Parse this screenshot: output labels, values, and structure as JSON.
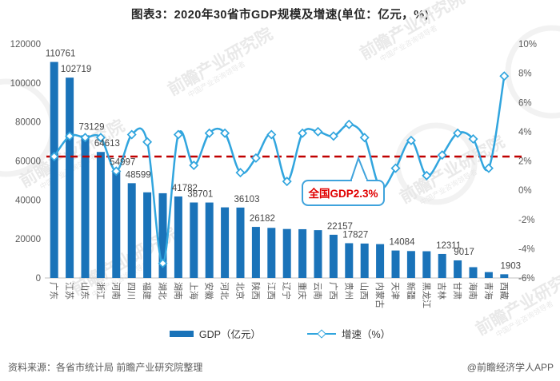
{
  "title": "图表3：2020年30省市GDP规模及增速(单位：亿元，%)",
  "legend": [
    {
      "label": "GDP（亿元）"
    },
    {
      "label": "增速（%）"
    }
  ],
  "footer": {
    "source": "资料来源：各省市统计局 前瞻产业研究院整理",
    "credit": "@前瞻经济学人APP"
  },
  "watermark": {
    "text": "前瞻产业研究院",
    "subtext": "中国产业咨询领导者"
  },
  "left_axis_ticks": [
    "120000",
    "100000",
    "80000",
    "60000",
    "40000",
    "20000",
    "0"
  ],
  "right_axis_ticks": [
    "10%",
    "8%",
    "6%",
    "4%",
    "2%",
    "0%",
    "-2%",
    "-4%",
    "-6%"
  ],
  "colors": {
    "bar": "#1A73B9",
    "line": "#31A5DE",
    "marker_fill": "#FFFFFF",
    "reference": "#C00000",
    "callout_border": "#3FA3DC",
    "callout_text": "#E00000",
    "axis_text": "#595959",
    "label_text": "#454545",
    "watermark": "#E7E7E7"
  },
  "chart_data": {
    "type": "bar+line",
    "title": "图表3：2020年30省市GDP规模及增速(单位：亿元，%)",
    "categories": [
      "广东",
      "江苏",
      "山东",
      "浙江",
      "河南",
      "四川",
      "福建",
      "湖北",
      "湖南",
      "上海",
      "安徽",
      "河北",
      "北京",
      "陕西",
      "江西",
      "辽宁",
      "重庆",
      "云南",
      "广西",
      "贵州",
      "山西",
      "内蒙古",
      "天津",
      "新疆",
      "黑龙江",
      "吉林",
      "甘肃",
      "海南",
      "青海",
      "西藏"
    ],
    "series": [
      {
        "name": "GDP（亿元）",
        "type": "bar",
        "axis": "left",
        "values": [
          110761,
          102719,
          73129,
          64613,
          54997,
          48599,
          43904,
          43443,
          41782,
          38701,
          38681,
          36207,
          36103,
          26182,
          25692,
          25115,
          25003,
          24522,
          22157,
          17827,
          17652,
          17360,
          14084,
          13798,
          13699,
          12311,
          9017,
          5532,
          3006,
          1903
        ]
      },
      {
        "name": "增速（%）",
        "type": "line",
        "axis": "right",
        "values": [
          2.3,
          3.7,
          3.6,
          3.6,
          1.3,
          3.8,
          3.3,
          -5.0,
          3.8,
          1.7,
          3.9,
          3.9,
          1.2,
          2.2,
          3.8,
          0.6,
          3.9,
          4.0,
          3.7,
          4.5,
          3.6,
          0.2,
          1.5,
          3.4,
          1.0,
          2.4,
          3.9,
          3.5,
          1.5,
          7.8
        ]
      }
    ],
    "bar_labels": [
      110761,
      102719,
      73129,
      64613,
      54997,
      48599,
      null,
      null,
      41782,
      38701,
      null,
      null,
      36103,
      26182,
      null,
      null,
      null,
      null,
      22157,
      17827,
      null,
      null,
      14084,
      null,
      null,
      12311,
      9017,
      null,
      null,
      1903
    ],
    "reference_line": {
      "value": 2.3,
      "label": "全国GDP2.3%"
    },
    "ylim_left": [
      0,
      120000
    ],
    "ylim_right": [
      -6,
      10
    ],
    "grid": false,
    "legend_position": "bottom"
  }
}
